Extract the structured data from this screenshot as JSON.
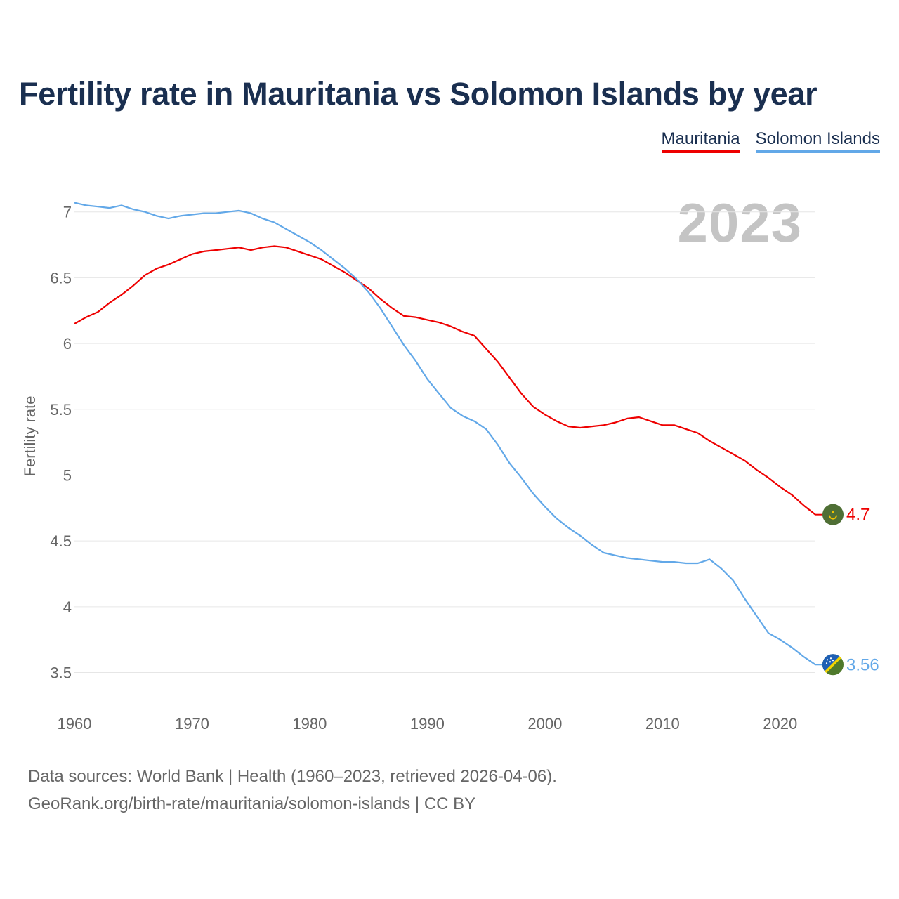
{
  "chart_data": {
    "type": "line",
    "title": "Fertility rate in Mauritania vs Solomon Islands by year",
    "ylabel": "Fertility rate",
    "xlabel": "",
    "current_year": "2023",
    "xlim": [
      1960,
      2023
    ],
    "ylim": [
      3.3,
      7.1
    ],
    "x_ticks": [
      1960,
      1970,
      1980,
      1990,
      2000,
      2010,
      2020
    ],
    "y_ticks": [
      3.5,
      4,
      4.5,
      5,
      5.5,
      6,
      6.5,
      7
    ],
    "x_tick_labels": [
      "1960",
      "1970",
      "1980",
      "1990",
      "2000",
      "2010",
      "2020"
    ],
    "y_tick_labels": [
      "3.5",
      "4",
      "4.5",
      "5",
      "5.5",
      "6",
      "6.5",
      "7"
    ],
    "x": [
      1960,
      1961,
      1962,
      1963,
      1964,
      1965,
      1966,
      1967,
      1968,
      1969,
      1970,
      1971,
      1972,
      1973,
      1974,
      1975,
      1976,
      1977,
      1978,
      1979,
      1980,
      1981,
      1982,
      1983,
      1984,
      1985,
      1986,
      1987,
      1988,
      1989,
      1990,
      1991,
      1992,
      1993,
      1994,
      1995,
      1996,
      1997,
      1998,
      1999,
      2000,
      2001,
      2002,
      2003,
      2004,
      2005,
      2006,
      2007,
      2008,
      2009,
      2010,
      2011,
      2012,
      2013,
      2014,
      2015,
      2016,
      2017,
      2018,
      2019,
      2020,
      2021,
      2022,
      2023
    ],
    "series": [
      {
        "name": "Mauritania",
        "color": "#ee0000",
        "end_label": "4.7",
        "values": [
          6.15,
          6.2,
          6.24,
          6.31,
          6.37,
          6.44,
          6.52,
          6.57,
          6.6,
          6.64,
          6.68,
          6.7,
          6.71,
          6.72,
          6.73,
          6.71,
          6.73,
          6.74,
          6.73,
          6.7,
          6.67,
          6.64,
          6.59,
          6.54,
          6.48,
          6.42,
          6.34,
          6.27,
          6.21,
          6.2,
          6.18,
          6.16,
          6.13,
          6.09,
          6.06,
          5.96,
          5.86,
          5.74,
          5.62,
          5.52,
          5.46,
          5.41,
          5.37,
          5.36,
          5.37,
          5.38,
          5.4,
          5.43,
          5.44,
          5.41,
          5.38,
          5.38,
          5.35,
          5.32,
          5.26,
          5.21,
          5.16,
          5.11,
          5.04,
          4.98,
          4.91,
          4.85,
          4.77,
          4.7
        ]
      },
      {
        "name": "Solomon Islands",
        "color": "#62a8e8",
        "end_label": "3.56",
        "values": [
          7.07,
          7.05,
          7.04,
          7.03,
          7.05,
          7.02,
          7.0,
          6.97,
          6.95,
          6.97,
          6.98,
          6.99,
          6.99,
          7.0,
          7.01,
          6.99,
          6.95,
          6.92,
          6.87,
          6.82,
          6.77,
          6.71,
          6.64,
          6.57,
          6.49,
          6.39,
          6.27,
          6.13,
          5.99,
          5.87,
          5.73,
          5.62,
          5.51,
          5.45,
          5.41,
          5.35,
          5.23,
          5.09,
          4.98,
          4.86,
          4.76,
          4.67,
          4.6,
          4.54,
          4.47,
          4.41,
          4.39,
          4.37,
          4.36,
          4.35,
          4.34,
          4.34,
          4.33,
          4.33,
          4.36,
          4.29,
          4.2,
          4.06,
          3.93,
          3.8,
          3.75,
          3.69,
          3.62,
          3.56
        ]
      }
    ],
    "legend_position": "top-right",
    "grid": true
  },
  "legend": {
    "items": [
      {
        "label": "Mauritania",
        "color": "#ee0000"
      },
      {
        "label": "Solomon Islands",
        "color": "#62a8e8"
      }
    ]
  },
  "footer": {
    "sources": "Data sources: World Bank | Health (1960–2023, retrieved 2026-04-06).",
    "attribution": "GeoRank.org/birth-rate/mauritania/solomon-islands | CC BY"
  },
  "flags": {
    "mauritania": {
      "icon": "mauritania-flag-icon",
      "green": "#4f6f35",
      "gold": "#f2c200"
    },
    "solomon_islands": {
      "icon": "solomon-islands-flag-icon",
      "blue": "#1e5fb4",
      "green": "#4f7a2c",
      "stripe": "#f2d400",
      "star": "#ffffff"
    }
  }
}
